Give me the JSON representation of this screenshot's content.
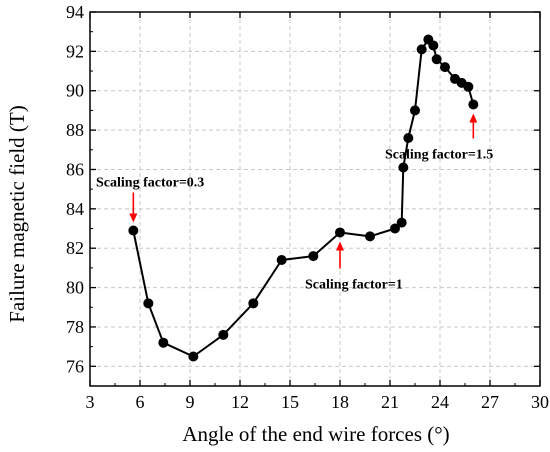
{
  "chart_data": {
    "type": "line",
    "xlabel": "Angle of the end wire forces (°)",
    "ylabel": "Failure magnetic field (T)",
    "xlim": [
      3,
      30
    ],
    "ylim": [
      75,
      94
    ],
    "xticks": [
      3,
      6,
      9,
      12,
      15,
      18,
      21,
      24,
      27,
      30
    ],
    "yticks": [
      76,
      78,
      80,
      82,
      84,
      86,
      88,
      90,
      92,
      94
    ],
    "xtick_labels": [
      "3",
      "6",
      "9",
      "12",
      "15",
      "18",
      "21",
      "24",
      "27",
      "30"
    ],
    "ytick_labels": [
      "76",
      "78",
      "80",
      "82",
      "84",
      "86",
      "88",
      "90",
      "92",
      "94"
    ],
    "grid": true,
    "series": [
      {
        "color": "#000000",
        "marker": "circle",
        "x": [
          5.6,
          6.5,
          7.4,
          9.2,
          11.0,
          12.8,
          14.5,
          16.4,
          18.0,
          19.8,
          21.3,
          21.7,
          21.8,
          22.1,
          22.5,
          22.9,
          23.3,
          23.6,
          23.8,
          24.3,
          24.9,
          25.3,
          25.7,
          26.0
        ],
        "y": [
          82.9,
          79.2,
          77.2,
          76.5,
          77.6,
          79.2,
          81.4,
          81.6,
          82.8,
          82.6,
          83.0,
          83.3,
          86.1,
          87.6,
          89.0,
          92.1,
          92.6,
          92.3,
          91.6,
          91.2,
          90.6,
          90.4,
          90.2,
          89.3
        ]
      }
    ],
    "annotations": [
      {
        "text": "Scaling factor=0.3",
        "x": 5.6,
        "y": 82.9
      },
      {
        "text": "Scaling factor=1",
        "x": 18.0,
        "y": 82.8
      },
      {
        "text": "Scaling factor=1.5",
        "x": 26.0,
        "y": 89.3
      }
    ],
    "annotation_color": "#ff0000"
  }
}
